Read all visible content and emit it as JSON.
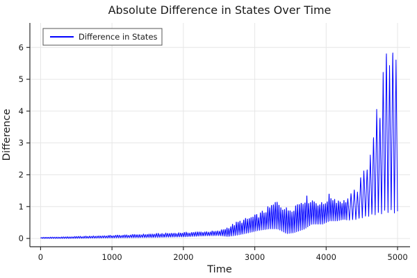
{
  "chart_data": {
    "type": "line",
    "title": "Absolute Difference in States Over Time",
    "xlabel": "Time",
    "ylabel": "Difference",
    "grid": true,
    "legend_position": "top-left",
    "x_ticks": [
      0,
      1000,
      2000,
      3000,
      4000,
      5000
    ],
    "y_ticks": [
      0,
      1,
      2,
      3,
      4,
      5,
      6
    ],
    "xlim": [
      -150,
      5175
    ],
    "ylim": [
      -0.26,
      6.77
    ],
    "colors": {
      "series": "#0000ff",
      "grid": "#e6e6e6",
      "axis": "#2b2b2b",
      "text": "#1a1a1a",
      "legend_border": "#555555",
      "background": "#ffffff"
    },
    "series": [
      {
        "name": "Difference in States",
        "color": "#0000ff",
        "description": "Absolute difference oscillating rapidly; values synthesized between lower and upper envelope keypoints [t, low, high]",
        "envelope": [
          [
            0,
            0.0,
            0.04
          ],
          [
            400,
            0.0,
            0.06
          ],
          [
            800,
            0.01,
            0.09
          ],
          [
            1200,
            0.02,
            0.12
          ],
          [
            1600,
            0.03,
            0.16
          ],
          [
            2000,
            0.05,
            0.2
          ],
          [
            2300,
            0.08,
            0.23
          ],
          [
            2500,
            0.09,
            0.25
          ],
          [
            2620,
            0.06,
            0.38
          ],
          [
            2750,
            0.1,
            0.55
          ],
          [
            2900,
            0.17,
            0.68
          ],
          [
            3050,
            0.25,
            0.8
          ],
          [
            3200,
            0.3,
            1.05
          ],
          [
            3320,
            0.3,
            1.28
          ],
          [
            3450,
            0.15,
            1.0
          ],
          [
            3550,
            0.18,
            1.12
          ],
          [
            3700,
            0.3,
            1.4
          ],
          [
            3800,
            0.45,
            1.32
          ],
          [
            3950,
            0.45,
            1.15
          ],
          [
            4050,
            0.55,
            1.45
          ],
          [
            4150,
            0.55,
            1.3
          ],
          [
            4250,
            0.6,
            1.25
          ],
          [
            4350,
            0.55,
            1.4
          ],
          [
            4450,
            0.6,
            1.7
          ],
          [
            4550,
            0.65,
            2.3
          ],
          [
            4650,
            0.7,
            3.4
          ],
          [
            4750,
            0.7,
            4.6
          ],
          [
            4850,
            0.75,
            5.9
          ],
          [
            4930,
            0.75,
            6.55
          ],
          [
            5000,
            0.7,
            6.6
          ]
        ],
        "oscillation": {
          "period_main": 26,
          "period_final": 45,
          "period_switch_t": 4300,
          "x_start": 0,
          "x_end": 5000,
          "y_max_clip": 6.68
        }
      }
    ]
  }
}
